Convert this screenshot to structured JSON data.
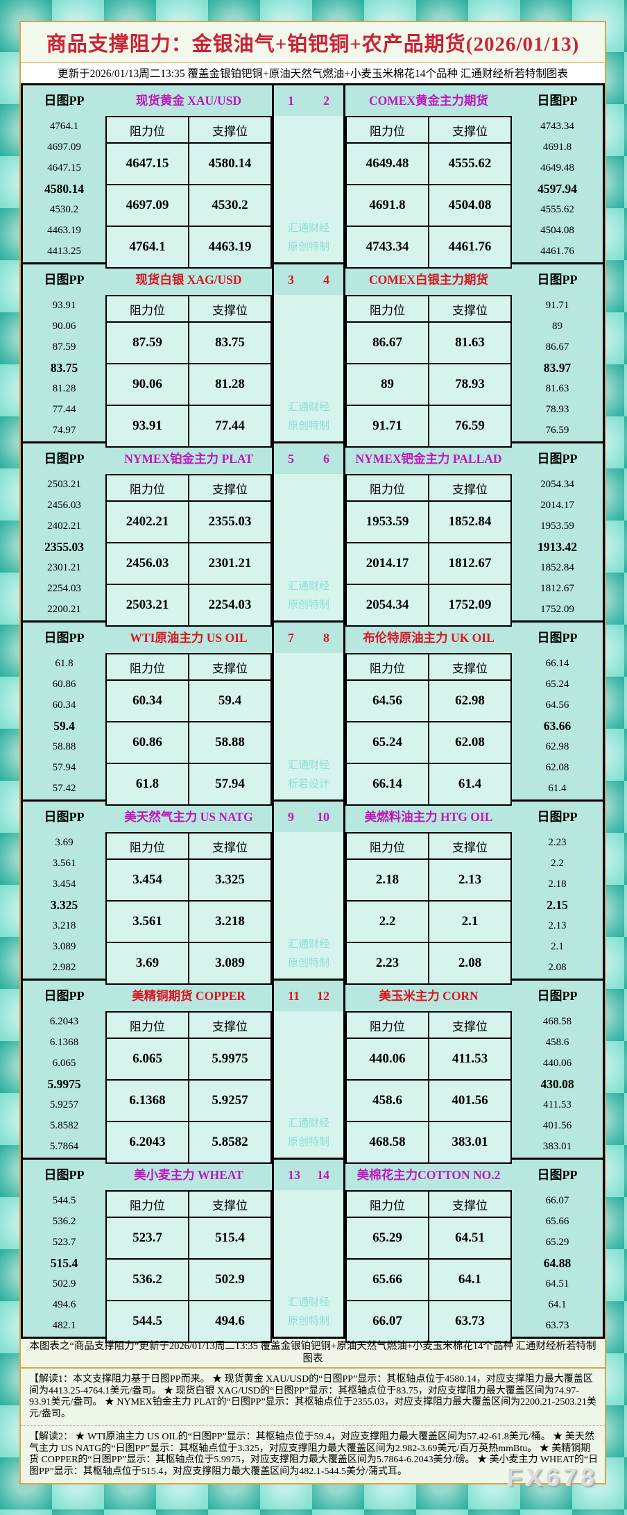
{
  "header": {
    "title": "商品支撑阻力：金银油气+铂钯铜+农产品期货(2026/01/13)",
    "subtitle": "更新于2026/01/13周二13:35 覆盖金银铂钯铜+原油天然气燃油+小麦玉米棉花14个品种 汇通财经析若特制图表"
  },
  "labels": {
    "pp": "日图PP",
    "resistance": "阻力位",
    "support": "支撑位"
  },
  "blocks": [
    {
      "index_left": "1",
      "index_right": "2",
      "accent": "#bf17bf",
      "watermark": [
        "汇通财经",
        "原创特制"
      ],
      "left": {
        "title": "现货黄金 XAU/USD",
        "pp_values": [
          "4764.1",
          "4697.09",
          "4647.15",
          "4580.14",
          "4530.2",
          "4463.19",
          "4413.25"
        ],
        "rows": [
          [
            "4647.15",
            "4580.14"
          ],
          [
            "4697.09",
            "4530.2"
          ],
          [
            "4764.1",
            "4463.19"
          ]
        ]
      },
      "right": {
        "title": "COMEX黄金主力期货",
        "pp_values": [
          "4743.34",
          "4691.8",
          "4649.48",
          "4597.94",
          "4555.62",
          "4504.08",
          "4461.76"
        ],
        "rows": [
          [
            "4649.48",
            "4555.62"
          ],
          [
            "4691.8",
            "4504.08"
          ],
          [
            "4743.34",
            "4461.76"
          ]
        ]
      }
    },
    {
      "index_left": "3",
      "index_right": "4",
      "accent": "#dd1520",
      "watermark": [
        "汇通财经",
        "原创特制"
      ],
      "left": {
        "title": "现货白银 XAG/USD",
        "pp_values": [
          "93.91",
          "90.06",
          "87.59",
          "83.75",
          "81.28",
          "77.44",
          "74.97"
        ],
        "rows": [
          [
            "87.59",
            "83.75"
          ],
          [
            "90.06",
            "81.28"
          ],
          [
            "93.91",
            "77.44"
          ]
        ]
      },
      "right": {
        "title": "COMEX白银主力期货",
        "pp_values": [
          "91.71",
          "89",
          "86.67",
          "83.97",
          "81.63",
          "78.93",
          "76.59"
        ],
        "rows": [
          [
            "86.67",
            "81.63"
          ],
          [
            "89",
            "78.93"
          ],
          [
            "91.71",
            "76.59"
          ]
        ]
      }
    },
    {
      "index_left": "5",
      "index_right": "6",
      "accent": "#bf17bf",
      "watermark": [
        "汇通财经",
        "原创特制"
      ],
      "left": {
        "title": "NYMEX铂金主力 PLAT",
        "pp_values": [
          "2503.21",
          "2456.03",
          "2402.21",
          "2355.03",
          "2301.21",
          "2254.03",
          "2200.21"
        ],
        "rows": [
          [
            "2402.21",
            "2355.03"
          ],
          [
            "2456.03",
            "2301.21"
          ],
          [
            "2503.21",
            "2254.03"
          ]
        ]
      },
      "right": {
        "title": "NYMEX钯金主力 PALLAD",
        "pp_values": [
          "2054.34",
          "2014.17",
          "1953.59",
          "1913.42",
          "1852.84",
          "1812.67",
          "1752.09"
        ],
        "rows": [
          [
            "1953.59",
            "1852.84"
          ],
          [
            "2014.17",
            "1812.67"
          ],
          [
            "2054.34",
            "1752.09"
          ]
        ]
      }
    },
    {
      "index_left": "7",
      "index_right": "8",
      "accent": "#dd1520",
      "watermark": [
        "汇通财经",
        "析若设计"
      ],
      "left": {
        "title": "WTI原油主力 US OIL",
        "pp_values": [
          "61.8",
          "60.86",
          "60.34",
          "59.4",
          "58.88",
          "57.94",
          "57.42"
        ],
        "rows": [
          [
            "60.34",
            "59.4"
          ],
          [
            "60.86",
            "58.88"
          ],
          [
            "61.8",
            "57.94"
          ]
        ]
      },
      "right": {
        "title": "布伦特原油主力 UK OIL",
        "pp_values": [
          "66.14",
          "65.24",
          "64.56",
          "63.66",
          "62.98",
          "62.08",
          "61.4"
        ],
        "rows": [
          [
            "64.56",
            "62.98"
          ],
          [
            "65.24",
            "62.08"
          ],
          [
            "66.14",
            "61.4"
          ]
        ]
      }
    },
    {
      "index_left": "9",
      "index_right": "10",
      "accent": "#bf17bf",
      "watermark": [
        "汇通财经",
        "原创特制"
      ],
      "left": {
        "title": "美天然气主力 US NATG",
        "pp_values": [
          "3.69",
          "3.561",
          "3.454",
          "3.325",
          "3.218",
          "3.089",
          "2.982"
        ],
        "rows": [
          [
            "3.454",
            "3.325"
          ],
          [
            "3.561",
            "3.218"
          ],
          [
            "3.69",
            "3.089"
          ]
        ]
      },
      "right": {
        "title": "美燃料油主力 HTG OIL",
        "pp_values": [
          "2.23",
          "2.2",
          "2.18",
          "2.15",
          "2.13",
          "2.1",
          "2.08"
        ],
        "rows": [
          [
            "2.18",
            "2.13"
          ],
          [
            "2.2",
            "2.1"
          ],
          [
            "2.23",
            "2.08"
          ]
        ]
      }
    },
    {
      "index_left": "11",
      "index_right": "12",
      "accent": "#dd1520",
      "watermark": [
        "汇通财经",
        "原创特制"
      ],
      "left": {
        "title": "美精铜期货 COPPER",
        "pp_values": [
          "6.2043",
          "6.1368",
          "6.065",
          "5.9975",
          "5.9257",
          "5.8582",
          "5.7864"
        ],
        "rows": [
          [
            "6.065",
            "5.9975"
          ],
          [
            "6.1368",
            "5.9257"
          ],
          [
            "6.2043",
            "5.8582"
          ]
        ]
      },
      "right": {
        "title": "美玉米主力 CORN",
        "pp_values": [
          "468.58",
          "458.6",
          "440.06",
          "430.08",
          "411.53",
          "401.56",
          "383.01"
        ],
        "rows": [
          [
            "440.06",
            "411.53"
          ],
          [
            "458.6",
            "401.56"
          ],
          [
            "468.58",
            "383.01"
          ]
        ]
      }
    },
    {
      "index_left": "13",
      "index_right": "14",
      "accent": "#bf17bf",
      "watermark": [
        "汇通财经",
        "原创特制"
      ],
      "left": {
        "title": "美小麦主力 WHEAT",
        "pp_values": [
          "544.5",
          "536.2",
          "523.7",
          "515.4",
          "502.9",
          "494.6",
          "482.1"
        ],
        "rows": [
          [
            "523.7",
            "515.4"
          ],
          [
            "536.2",
            "502.9"
          ],
          [
            "544.5",
            "494.6"
          ]
        ]
      },
      "right": {
        "title": "美棉花主力COTTON NO.2",
        "pp_values": [
          "66.07",
          "65.66",
          "65.29",
          "64.88",
          "64.51",
          "64.1",
          "63.73"
        ],
        "rows": [
          [
            "65.29",
            "64.51"
          ],
          [
            "65.66",
            "64.1"
          ],
          [
            "66.07",
            "63.73"
          ]
        ]
      }
    }
  ],
  "footer": {
    "note": "本图表之“商品支撑阻力”更新于2026/01/13周二13:35 覆盖金银铂钯铜+原油天然气燃油+小麦玉米棉花14个品种 汇通财经析若特制图表",
    "interpretation1": "【解读1：本文支撑阻力基于日图PP而来。 ★ 现货黄金 XAU/USD的“日图PP”显示：其枢轴点位于4580.14，对应支撑阻力最大覆盖区间为4413.25-4764.1美元/盎司。 ★ 现货白银 XAG/USD的“日图PP”显示：其枢轴点位于83.75，对应支撑阻力最大覆盖区间为74.97-93.91美元/盎司。 ★ NYMEX铂金主力 PLAT的“日图PP”显示：其枢轴点位于2355.03，对应支撑阻力最大覆盖区间为2200.21-2503.21美元/盎司。",
    "interpretation2": "【解读2： ★ WTI原油主力 US OIL的“日图PP”显示：其枢轴点位于59.4，对应支撑阻力最大覆盖区间为57.42-61.8美元/桶。 ★ 美天然气主力 US NATG的“日图PP”显示：其枢轴点位于3.325，对应支撑阻力最大覆盖区间为2.982-3.69美元/百万英热mmBtu。 ★ 美精铜期货 COPPER的“日图PP”显示：其枢轴点位于5.9975，对应支撑阻力最大覆盖区间为5.7864-6.2043美分/磅。 ★ 美小麦主力 WHEAT的“日图PP”显示：其枢轴点位于515.4，对应支撑阻力最大覆盖区间为482.1-544.5美分/蒲式耳。",
    "brand_watermark": "FX678"
  },
  "chart_data": {
    "type": "table",
    "title": "商品支撑阻力：金银油气+铂钯铜+农产品期货(2026/01/13)",
    "updated": "2026/01/13周二13:35",
    "columns": [
      "日图PP",
      "阻力位",
      "支撑位"
    ],
    "instruments": [
      {
        "name": "现货黄金 XAU/USD",
        "pivot": 4580.14,
        "pp_levels": [
          4764.1,
          4697.09,
          4647.15,
          4580.14,
          4530.2,
          4463.19,
          4413.25
        ],
        "resistance": [
          4647.15,
          4697.09,
          4764.1
        ],
        "support": [
          4580.14,
          4530.2,
          4463.19
        ]
      },
      {
        "name": "COMEX黄金主力期货",
        "pivot": 4597.94,
        "pp_levels": [
          4743.34,
          4691.8,
          4649.48,
          4597.94,
          4555.62,
          4504.08,
          4461.76
        ],
        "resistance": [
          4649.48,
          4691.8,
          4743.34
        ],
        "support": [
          4555.62,
          4504.08,
          4461.76
        ]
      },
      {
        "name": "现货白银 XAG/USD",
        "pivot": 83.75,
        "pp_levels": [
          93.91,
          90.06,
          87.59,
          83.75,
          81.28,
          77.44,
          74.97
        ],
        "resistance": [
          87.59,
          90.06,
          93.91
        ],
        "support": [
          83.75,
          81.28,
          77.44
        ]
      },
      {
        "name": "COMEX白银主力期货",
        "pivot": 83.97,
        "pp_levels": [
          91.71,
          89,
          86.67,
          83.97,
          81.63,
          78.93,
          76.59
        ],
        "resistance": [
          86.67,
          89,
          91.71
        ],
        "support": [
          81.63,
          78.93,
          76.59
        ]
      },
      {
        "name": "NYMEX铂金主力 PLAT",
        "pivot": 2355.03,
        "pp_levels": [
          2503.21,
          2456.03,
          2402.21,
          2355.03,
          2301.21,
          2254.03,
          2200.21
        ],
        "resistance": [
          2402.21,
          2456.03,
          2503.21
        ],
        "support": [
          2355.03,
          2301.21,
          2254.03
        ]
      },
      {
        "name": "NYMEX钯金主力 PALLAD",
        "pivot": 1913.42,
        "pp_levels": [
          2054.34,
          2014.17,
          1953.59,
          1913.42,
          1852.84,
          1812.67,
          1752.09
        ],
        "resistance": [
          1953.59,
          2014.17,
          2054.34
        ],
        "support": [
          1852.84,
          1812.67,
          1752.09
        ]
      },
      {
        "name": "WTI原油主力 US OIL",
        "pivot": 59.4,
        "pp_levels": [
          61.8,
          60.86,
          60.34,
          59.4,
          58.88,
          57.94,
          57.42
        ],
        "resistance": [
          60.34,
          60.86,
          61.8
        ],
        "support": [
          59.4,
          58.88,
          57.94
        ]
      },
      {
        "name": "布伦特原油主力 UK OIL",
        "pivot": 63.66,
        "pp_levels": [
          66.14,
          65.24,
          64.56,
          63.66,
          62.98,
          62.08,
          61.4
        ],
        "resistance": [
          64.56,
          65.24,
          66.14
        ],
        "support": [
          62.98,
          62.08,
          61.4
        ]
      },
      {
        "name": "美天然气主力 US NATG",
        "pivot": 3.325,
        "pp_levels": [
          3.69,
          3.561,
          3.454,
          3.325,
          3.218,
          3.089,
          2.982
        ],
        "resistance": [
          3.454,
          3.561,
          3.69
        ],
        "support": [
          3.325,
          3.218,
          3.089
        ]
      },
      {
        "name": "美燃料油主力 HTG OIL",
        "pivot": 2.15,
        "pp_levels": [
          2.23,
          2.2,
          2.18,
          2.15,
          2.13,
          2.1,
          2.08
        ],
        "resistance": [
          2.18,
          2.2,
          2.23
        ],
        "support": [
          2.13,
          2.1,
          2.08
        ]
      },
      {
        "name": "美精铜期货 COPPER",
        "pivot": 5.9975,
        "pp_levels": [
          6.2043,
          6.1368,
          6.065,
          5.9975,
          5.9257,
          5.8582,
          5.7864
        ],
        "resistance": [
          6.065,
          6.1368,
          6.2043
        ],
        "support": [
          5.9975,
          5.9257,
          5.8582
        ]
      },
      {
        "name": "美玉米主力 CORN",
        "pivot": 430.08,
        "pp_levels": [
          468.58,
          458.6,
          440.06,
          430.08,
          411.53,
          401.56,
          383.01
        ],
        "resistance": [
          440.06,
          458.6,
          468.58
        ],
        "support": [
          411.53,
          401.56,
          383.01
        ]
      },
      {
        "name": "美小麦主力 WHEAT",
        "pivot": 515.4,
        "pp_levels": [
          544.5,
          536.2,
          523.7,
          515.4,
          502.9,
          494.6,
          482.1
        ],
        "resistance": [
          523.7,
          536.2,
          544.5
        ],
        "support": [
          515.4,
          502.9,
          494.6
        ]
      },
      {
        "name": "美棉花主力COTTON NO.2",
        "pivot": 64.88,
        "pp_levels": [
          66.07,
          65.66,
          65.29,
          64.88,
          64.51,
          64.1,
          63.73
        ],
        "resistance": [
          65.29,
          65.66,
          66.07
        ],
        "support": [
          64.51,
          64.1,
          63.73
        ]
      }
    ]
  }
}
